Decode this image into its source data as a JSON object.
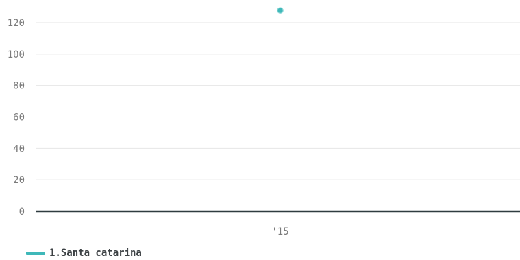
{
  "chart_data": {
    "type": "scatter",
    "x_categories": [
      "'15"
    ],
    "yticks": [
      0,
      20,
      40,
      60,
      80,
      100,
      120
    ],
    "ylim": [
      0,
      128
    ],
    "grid": true,
    "legend_position": "bottom-left",
    "series": [
      {
        "name": "1.Santa catarina",
        "color": "#3fb8b9",
        "points": [
          {
            "x": "'15",
            "y": 128
          }
        ]
      }
    ],
    "colors": {
      "grid": "#e6e6e6",
      "baseline": "#2f3c40",
      "tick_text": "#7b7b7b",
      "point_stroke": "#8fd8d8"
    }
  },
  "legend": {
    "label": "1.Santa catarina",
    "color": "#3fb8b9"
  }
}
